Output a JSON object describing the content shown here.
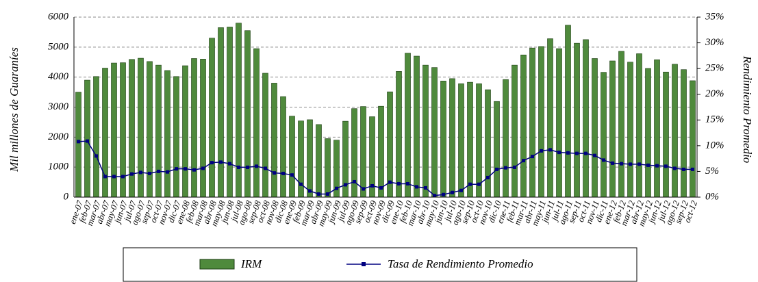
{
  "chart_data": {
    "type": "bar",
    "y_label": "Mil millones de Guaraníes",
    "y2_label": "Rendimiento Promedio",
    "categories": [
      "ene-07",
      "feb-07",
      "mar-07",
      "abr-07",
      "may-07",
      "jun-07",
      "jul-07",
      "ago-07",
      "sep-07",
      "oct-07",
      "nov-07",
      "dic-07",
      "ene-08",
      "feb-08",
      "mar-08",
      "abr-08",
      "may-08",
      "jun-08",
      "jul-08",
      "ago-08",
      "sep-08",
      "oct-08",
      "nov-08",
      "dic-08",
      "ene-09",
      "feb-09",
      "mar-09",
      "abr-09",
      "may-09",
      "jun-09",
      "jul-09",
      "ago-09",
      "sep-09",
      "oct-09",
      "nov-09",
      "dic-09",
      "ene-10",
      "feb-10",
      "mar-10",
      "abr-10",
      "may-10",
      "jun-10",
      "jul-10",
      "ago-10",
      "sep-10",
      "oct-10",
      "nov-10",
      "dic-10",
      "ene-11",
      "feb-11",
      "mar-11",
      "abr-11",
      "may-11",
      "jun-11",
      "jul-11",
      "ago-11",
      "sep-11",
      "oct-11",
      "nov-11",
      "dic-11",
      "ene-12",
      "feb-12",
      "mar-12",
      "abr-12",
      "may-12",
      "jun-12",
      "jul-12",
      "ago-12",
      "sep-12",
      "oct-12"
    ],
    "series": [
      {
        "name": "IRM",
        "type": "bar",
        "color": "#4f8a3c",
        "values": [
          3500,
          3900,
          4020,
          4300,
          4470,
          4480,
          4590,
          4630,
          4520,
          4400,
          4220,
          4020,
          4380,
          4620,
          4600,
          5300,
          5650,
          5670,
          5800,
          5550,
          4950,
          4130,
          3800,
          3350,
          2700,
          2540,
          2580,
          2420,
          1950,
          1900,
          2530,
          2950,
          3020,
          2680,
          3030,
          3510,
          4190,
          4800,
          4700,
          4400,
          4320,
          3870,
          3950,
          3780,
          3830,
          3780,
          3580,
          3190,
          3920,
          4400,
          4740,
          4970,
          5020,
          5280,
          4950,
          5730,
          5130,
          5250,
          4620,
          4160,
          4540,
          4860,
          4500,
          4780,
          4290,
          4580,
          4170,
          4430,
          4250,
          3880
        ]
      },
      {
        "name": "Tasa de Rendimiento Promedio",
        "type": "line",
        "axis": "y2",
        "color": "#000080",
        "values": [
          10.8,
          10.9,
          8,
          4,
          4,
          4,
          4.5,
          4.8,
          4.6,
          5,
          4.9,
          5.5,
          5.5,
          5.3,
          5.6,
          6.7,
          6.8,
          6.5,
          5.8,
          5.8,
          6,
          5.6,
          4.7,
          4.6,
          4.3,
          2.5,
          1.2,
          0.6,
          0.6,
          1.7,
          2.4,
          3,
          1.6,
          2.2,
          1.8,
          2.9,
          2.6,
          2.6,
          2,
          1.8,
          0.3,
          0.5,
          0.9,
          1.3,
          2.5,
          2.5,
          3.8,
          5.4,
          5.7,
          5.8,
          7.1,
          7.9,
          9,
          9.2,
          8.7,
          8.6,
          8.5,
          8.5,
          8.1,
          7.2,
          6.6,
          6.5,
          6.4,
          6.4,
          6.2,
          6.1,
          6,
          5.6,
          5.4,
          5.4
        ]
      }
    ],
    "ylim": [
      0,
      6000
    ],
    "yticks": [
      0,
      1000,
      2000,
      3000,
      4000,
      5000,
      6000
    ],
    "y2lim": [
      0,
      35
    ],
    "y2ticks": [
      {
        "value": 0,
        "label": "0%"
      },
      {
        "value": 5,
        "label": "5%"
      },
      {
        "value": 10,
        "label": "10%"
      },
      {
        "value": 15,
        "label": "15%"
      },
      {
        "value": 20,
        "label": "20%"
      },
      {
        "value": 25,
        "label": "25%"
      },
      {
        "value": 30,
        "label": "30%"
      },
      {
        "value": 35,
        "label": "35%"
      }
    ],
    "grid": true,
    "legend": "bottom"
  }
}
